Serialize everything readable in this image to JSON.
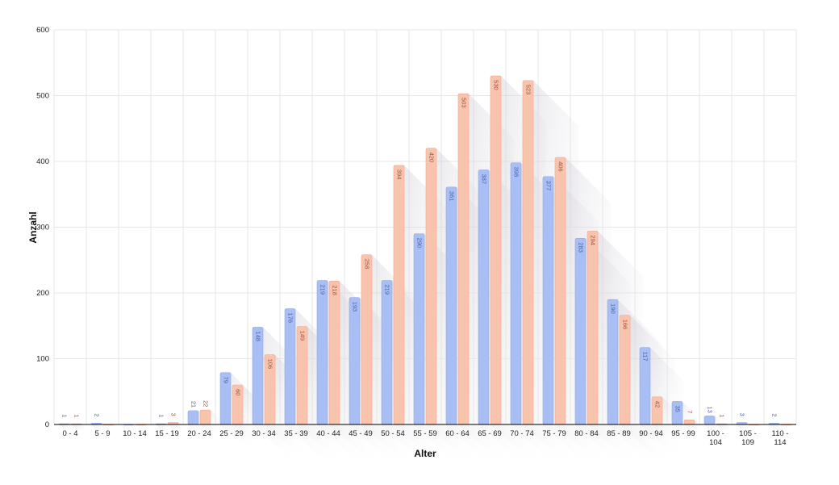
{
  "chart_data": {
    "type": "bar",
    "xlabel": "Alter",
    "ylabel": "Anzahl",
    "ylim": [
      0,
      600
    ],
    "yticks": [
      0,
      100,
      200,
      300,
      400,
      500,
      600
    ],
    "grid": true,
    "categories": [
      [
        "0 - 4"
      ],
      [
        "5 - 9"
      ],
      [
        "10 - 14"
      ],
      [
        "15 - 19"
      ],
      [
        "20 - 24"
      ],
      [
        "25 - 29"
      ],
      [
        "30 - 34"
      ],
      [
        "35 - 39"
      ],
      [
        "40 - 44"
      ],
      [
        "45 - 49"
      ],
      [
        "50 - 54"
      ],
      [
        "55 - 59"
      ],
      [
        "60 - 64"
      ],
      [
        "65 - 69"
      ],
      [
        "70 - 74"
      ],
      [
        "75 - 79"
      ],
      [
        "80 - 84"
      ],
      [
        "85 - 89"
      ],
      [
        "90 - 94"
      ],
      [
        "95 - 99"
      ],
      [
        "100 -",
        "104"
      ],
      [
        "105 -",
        "109"
      ],
      [
        "110 -",
        "114"
      ]
    ],
    "series": [
      {
        "color": "#a7bff5",
        "label_color": "#4a5fa8",
        "values": [
          1,
          2,
          0,
          1,
          21,
          79,
          148,
          176,
          219,
          193,
          219,
          290,
          361,
          387,
          398,
          377,
          283,
          190,
          117,
          35,
          13,
          3,
          2
        ]
      },
      {
        "color": "#f9c4ae",
        "label_color": "#a0503a",
        "values": [
          1,
          0,
          0,
          3,
          22,
          60,
          106,
          149,
          218,
          258,
          394,
          420,
          503,
          530,
          523,
          406,
          294,
          166,
          42,
          7,
          1,
          0,
          0
        ]
      }
    ],
    "data_labels": [
      [
        1,
        2,
        null,
        1,
        21,
        79,
        148,
        176,
        219,
        193,
        219,
        290,
        361,
        387,
        398,
        377,
        283,
        190,
        117,
        35,
        13,
        3,
        2
      ],
      [
        1,
        null,
        null,
        3,
        22,
        60,
        106,
        149,
        218,
        258,
        394,
        420,
        503,
        530,
        523,
        406,
        294,
        166,
        42,
        7,
        1,
        null,
        null
      ]
    ]
  }
}
